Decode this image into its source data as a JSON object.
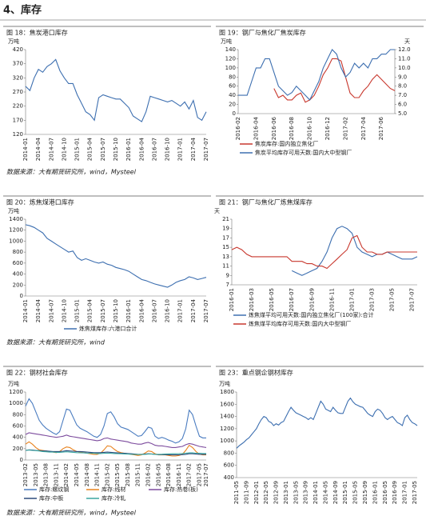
{
  "section_title": "4、库存",
  "sources": [
    "数据来源：大有期货研究所，wind，Mysteel",
    "数据来源：大有期货研究所，wind",
    "数据来源：大有期货研究所，wind，Mysteel"
  ],
  "chart_data": [
    {
      "type": "line",
      "title": "图 18：焦炭港口库存",
      "y_label": "万吨",
      "categories": [
        "2014-01",
        null,
        null,
        "2014-04",
        null,
        null,
        "2014-07",
        null,
        null,
        "2014-10",
        null,
        null,
        "2015-01",
        null,
        null,
        "2015-04",
        null,
        null,
        "2015-07",
        null,
        null,
        "2015-10",
        null,
        null,
        "2016-01",
        null,
        null,
        "2016-04",
        null,
        null,
        "2016-07",
        null,
        null,
        "2016-10",
        null,
        null,
        "2017-01",
        null,
        null,
        "2017-04",
        null,
        null,
        "2017-07"
      ],
      "values": [
        290,
        275,
        320,
        350,
        340,
        360,
        370,
        385,
        345,
        320,
        300,
        300,
        260,
        230,
        200,
        190,
        170,
        250,
        260,
        255,
        250,
        245,
        245,
        230,
        215,
        185,
        175,
        165,
        200,
        255,
        250,
        245,
        240,
        235,
        240,
        230,
        220,
        235,
        210,
        240,
        180,
        170,
        200
      ],
      "color": "#3d6fb0",
      "ylim": [
        120,
        420
      ],
      "yticks": [
        120,
        170,
        220,
        270,
        320,
        370,
        420
      ]
    },
    {
      "type": "line",
      "title": "图 19：钢厂与焦化厂焦炭库存",
      "y_label": "万吨",
      "y2_label": "天",
      "categories": [
        "2016-02",
        null,
        null,
        null,
        "2016-04",
        null,
        null,
        null,
        "2016-06",
        null,
        null,
        null,
        "2016-08",
        null,
        null,
        null,
        "2016-10",
        null,
        null,
        null,
        "2016-12",
        null,
        null,
        null,
        "2017-02",
        null,
        null,
        null,
        "2017-04",
        null,
        null,
        null,
        "2017-06",
        null,
        null,
        null
      ],
      "series": [
        {
          "name": "焦炭库存:国内独立焦化厂",
          "color": "#c8372d",
          "axis": "y",
          "values": [
            null,
            null,
            null,
            null,
            null,
            null,
            null,
            null,
            55,
            35,
            40,
            30,
            30,
            40,
            45,
            25,
            30,
            40,
            60,
            85,
            100,
            120,
            120,
            115,
            80,
            45,
            35,
            35,
            50,
            60,
            75,
            85,
            75,
            65,
            55,
            50
          ]
        },
        {
          "name": "焦炭平均库存可用天数:国内大中型钢厂",
          "color": "#3d6fb0",
          "axis": "y2",
          "values": [
            7,
            7,
            7,
            8.5,
            10,
            10,
            11,
            11,
            9.5,
            8,
            7.5,
            7,
            7.3,
            8,
            7.5,
            7,
            6.5,
            7.5,
            8.5,
            10,
            11,
            12,
            11.5,
            10,
            9,
            9.5,
            10.5,
            10,
            10.5,
            10,
            11,
            11,
            11.5,
            11.5,
            12,
            12
          ]
        }
      ],
      "ylim": [
        0,
        140
      ],
      "yticks": [
        0,
        20,
        40,
        60,
        80,
        100,
        120,
        140
      ],
      "y2lim": [
        5,
        12
      ],
      "y2ticks": [
        {
          "value": 5,
          "label": "5.0"
        },
        {
          "value": 6,
          "label": "6.0"
        },
        {
          "value": 7,
          "label": "7.0"
        },
        {
          "value": 8,
          "label": "8.0"
        },
        {
          "value": 9,
          "label": "9.0"
        },
        {
          "value": 10,
          "label": "10.0"
        },
        {
          "value": 11,
          "label": "11.0"
        },
        {
          "value": 12,
          "label": "12.0"
        }
      ]
    },
    {
      "type": "line",
      "title": "图 20：炼焦煤港口库存",
      "y_label": "万吨",
      "categories": [
        "2014-01",
        null,
        null,
        "2014-04",
        null,
        null,
        "2014-07",
        null,
        null,
        "2014-10",
        null,
        null,
        "2015-01",
        null,
        null,
        "2015-04",
        null,
        null,
        "2015-07",
        null,
        null,
        "2015-10",
        null,
        null,
        "2016-01",
        null,
        null,
        "2016-04",
        null,
        null,
        "2016-07",
        null,
        null,
        "2016-10",
        null,
        null,
        "2017-01",
        null,
        null,
        "2017-04",
        null,
        null,
        "2017-07"
      ],
      "series": [
        {
          "name": "炼焦煤库存:六港口合计",
          "color": "#3d6fb0",
          "values": [
            1300,
            1280,
            1250,
            1200,
            1150,
            1050,
            1000,
            950,
            900,
            850,
            800,
            820,
            700,
            650,
            680,
            650,
            620,
            600,
            620,
            580,
            560,
            520,
            500,
            480,
            450,
            400,
            350,
            300,
            280,
            250,
            220,
            200,
            180,
            160,
            200,
            250,
            280,
            300,
            350,
            330,
            300,
            320,
            340
          ]
        }
      ],
      "ylim": [
        0,
        1400
      ],
      "yticks": [
        0,
        200,
        400,
        600,
        800,
        1000,
        1200,
        1400
      ]
    },
    {
      "type": "line",
      "title": "图 21：钢厂与焦化厂炼焦煤库存",
      "y_label": "天",
      "categories": [
        "2016-01",
        null,
        null,
        null,
        "2016-03",
        null,
        null,
        null,
        "2016-05",
        null,
        null,
        null,
        "2016-07",
        null,
        null,
        null,
        "2016-09",
        null,
        null,
        null,
        "2016-11",
        null,
        null,
        null,
        "2017-01",
        null,
        null,
        null,
        "2017-03",
        null,
        null,
        null,
        "2017-05",
        null,
        null,
        null,
        "2017-07",
        null
      ],
      "series": [
        {
          "name": "炼焦煤平均可用天数:国内独立焦化厂(100家):合计",
          "color": "#3d6fb0",
          "values": [
            null,
            null,
            null,
            null,
            null,
            null,
            null,
            null,
            null,
            null,
            null,
            null,
            10,
            9.5,
            9,
            9.5,
            10,
            10.5,
            12,
            14,
            17,
            19,
            19.5,
            19,
            18,
            15,
            14,
            13.5,
            13,
            13.5,
            13.5,
            14,
            13.5,
            13,
            12.5,
            12.5,
            12.5,
            13
          ]
        },
        {
          "name": "炼焦煤平均库存可用天数:国内大中型钢厂",
          "color": "#c8372d",
          "values": [
            14.5,
            15,
            14.5,
            13.5,
            13,
            13,
            13,
            13,
            13,
            13,
            13,
            13,
            12,
            12,
            12,
            11.5,
            11.5,
            11,
            11,
            10.5,
            11.5,
            12.5,
            13.5,
            14.5,
            17,
            17.5,
            15,
            14,
            14,
            13.5,
            13.5,
            14,
            14,
            14,
            14,
            14,
            14,
            14
          ]
        }
      ],
      "ylim": [
        7,
        21
      ],
      "yticks": [
        7,
        9,
        11,
        13,
        15,
        17,
        19,
        21
      ]
    },
    {
      "type": "line",
      "title": "图 22：钢材社会库存",
      "y_label": "万吨",
      "categories": [
        "2013-02",
        null,
        null,
        "2013-05",
        null,
        null,
        "2013-08",
        null,
        null,
        "2013-11",
        null,
        null,
        "2014-02",
        null,
        null,
        "2014-05",
        null,
        null,
        "2014-08",
        null,
        null,
        "2014-11",
        null,
        null,
        "2015-02",
        null,
        null,
        "2015-05",
        null,
        null,
        "2015-08",
        null,
        null,
        "2015-11",
        null,
        null,
        "2016-02",
        null,
        null,
        "2016-05",
        null,
        null,
        "2016-08",
        null,
        null,
        "2016-11",
        null,
        null,
        "2017-02",
        null,
        null,
        "2017-05",
        null,
        "2017-07"
      ],
      "series": [
        {
          "name": "库存:螺纹钢",
          "color": "#4a7cc0",
          "values": [
            950,
            1080,
            1000,
            850,
            700,
            620,
            560,
            520,
            480,
            450,
            500,
            700,
            900,
            880,
            750,
            620,
            560,
            530,
            500,
            460,
            420,
            400,
            450,
            600,
            820,
            850,
            760,
            640,
            580,
            560,
            540,
            500,
            460,
            420,
            430,
            500,
            580,
            560,
            420,
            380,
            400,
            380,
            350,
            330,
            300,
            320,
            380,
            550,
            880,
            800,
            600,
            420,
            390,
            390
          ]
        },
        {
          "name": "库存:线材",
          "color": "#e8821e",
          "values": [
            280,
            320,
            280,
            220,
            180,
            170,
            160,
            150,
            140,
            130,
            150,
            200,
            230,
            220,
            180,
            150,
            140,
            130,
            120,
            110,
            100,
            100,
            120,
            180,
            250,
            240,
            190,
            150,
            130,
            120,
            110,
            100,
            90,
            80,
            90,
            120,
            160,
            150,
            110,
            90,
            90,
            90,
            80,
            70,
            70,
            80,
            100,
            170,
            260,
            220,
            150,
            100,
            90,
            90
          ]
        },
        {
          "name": "库存:热卷(板)",
          "color": "#7d4c9e",
          "values": [
            450,
            480,
            470,
            460,
            450,
            440,
            430,
            420,
            410,
            400,
            410,
            420,
            440,
            420,
            410,
            400,
            390,
            380,
            370,
            360,
            350,
            340,
            350,
            380,
            390,
            370,
            360,
            350,
            340,
            330,
            320,
            300,
            290,
            280,
            280,
            300,
            310,
            290,
            260,
            250,
            250,
            240,
            230,
            220,
            220,
            230,
            240,
            270,
            290,
            280,
            260,
            240,
            230,
            220
          ]
        },
        {
          "name": "库存:中板",
          "color": "#2c4a7a",
          "values": [
            170,
            180,
            175,
            170,
            165,
            160,
            160,
            155,
            150,
            150,
            150,
            155,
            165,
            160,
            155,
            150,
            150,
            145,
            140,
            135,
            130,
            130,
            130,
            135,
            140,
            135,
            130,
            125,
            120,
            118,
            115,
            110,
            105,
            100,
            100,
            105,
            110,
            108,
            100,
            95,
            95,
            95,
            92,
            90,
            90,
            92,
            95,
            100,
            110,
            110,
            105,
            100,
            100,
            100
          ]
        },
        {
          "name": "库存:冷轧",
          "color": "#3aa6a0",
          "values": [
            170,
            175,
            170,
            165,
            160,
            150,
            145,
            140,
            140,
            135,
            135,
            140,
            145,
            140,
            135,
            130,
            128,
            125,
            122,
            120,
            118,
            115,
            115,
            118,
            120,
            118,
            115,
            112,
            110,
            108,
            105,
            102,
            100,
            98,
            98,
            100,
            105,
            105,
            100,
            100,
            102,
            105,
            108,
            110,
            110,
            112,
            115,
            118,
            125,
            125,
            120,
            118,
            115,
            115
          ]
        }
      ],
      "ylim": [
        0,
        1200
      ],
      "yticks": [
        0,
        200,
        400,
        600,
        800,
        1000,
        1200
      ]
    },
    {
      "type": "line",
      "title": "图 23：重点钢企钢材库存",
      "y_label": "万吨",
      "categories": [
        "2011-05",
        null,
        null,
        null,
        "2011-09",
        null,
        null,
        null,
        "2012-01",
        null,
        null,
        null,
        "2012-05",
        null,
        null,
        null,
        "2012-09",
        null,
        null,
        null,
        "2013-01",
        null,
        null,
        null,
        "2013-05",
        null,
        null,
        null,
        "2013-09",
        null,
        null,
        null,
        "2014-01",
        null,
        null,
        null,
        "2014-05",
        null,
        null,
        null,
        "2014-09",
        null,
        null,
        null,
        "2015-01",
        null,
        null,
        null,
        "2015-05",
        null,
        null,
        null,
        "2015-09",
        null,
        null,
        null,
        "2016-01",
        null,
        null,
        null,
        "2016-05",
        null,
        null,
        null,
        "2016-09",
        null,
        null,
        null,
        "2017-01",
        null,
        null,
        null,
        "2017-05",
        null
      ],
      "values": [
        880,
        920,
        950,
        980,
        1020,
        1050,
        1100,
        1150,
        1200,
        1280,
        1350,
        1400,
        1380,
        1320,
        1300,
        1250,
        1280,
        1260,
        1300,
        1320,
        1400,
        1480,
        1550,
        1500,
        1460,
        1440,
        1420,
        1400,
        1380,
        1350,
        1380,
        1350,
        1450,
        1550,
        1650,
        1600,
        1520,
        1500,
        1480,
        1550,
        1500,
        1460,
        1450,
        1450,
        1550,
        1650,
        1700,
        1640,
        1600,
        1580,
        1560,
        1550,
        1500,
        1450,
        1420,
        1400,
        1480,
        1520,
        1500,
        1450,
        1380,
        1350,
        1380,
        1400,
        1350,
        1300,
        1280,
        1250,
        1380,
        1420,
        1350,
        1300,
        1280,
        1250
      ],
      "color": "#3d6fb0",
      "ylim": [
        400,
        1800
      ],
      "yticks": [
        400,
        600,
        800,
        1000,
        1200,
        1400,
        1600,
        1800
      ]
    }
  ]
}
